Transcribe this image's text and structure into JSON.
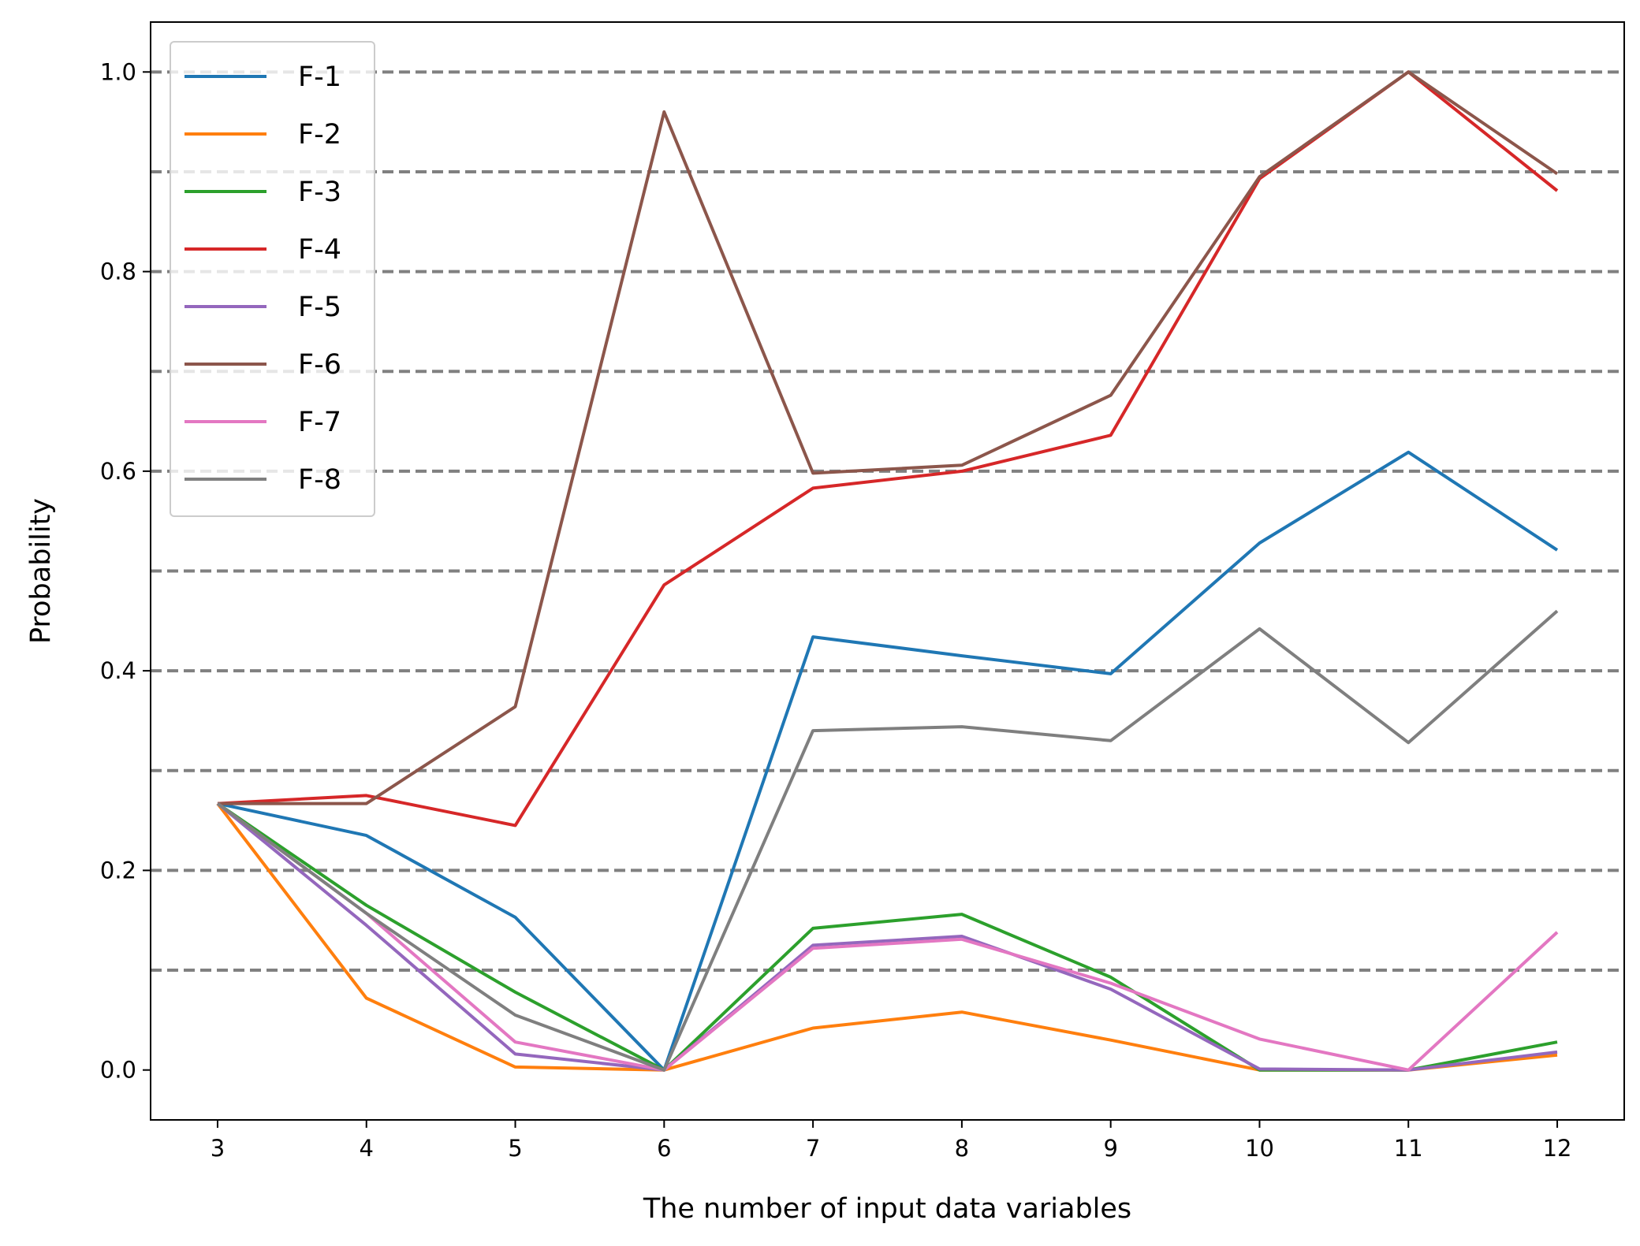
{
  "chart_data": {
    "type": "line",
    "xlabel": "The number of input data variables",
    "ylabel": "Probability",
    "x": [
      3,
      4,
      5,
      6,
      7,
      8,
      9,
      10,
      11,
      12
    ],
    "xlim": [
      2.55,
      12.45
    ],
    "ylim": [
      -0.05,
      1.05
    ],
    "x_ticks": [
      3,
      4,
      5,
      6,
      7,
      8,
      9,
      10,
      11,
      12
    ],
    "y_ticks": [
      0.0,
      0.2,
      0.4,
      0.6,
      0.8,
      1.0
    ],
    "y_tick_labels": [
      "0.0",
      "0.2",
      "0.4",
      "0.6",
      "0.8",
      "1.0"
    ],
    "grid": {
      "axis": "y",
      "style": "dashed",
      "color": "#808080",
      "values": [
        0.1,
        0.2,
        0.3,
        0.4,
        0.5,
        0.6,
        0.7,
        0.8,
        0.9,
        1.0
      ]
    },
    "legend": {
      "placement": "upper-left"
    },
    "series": [
      {
        "name": "F-1",
        "color": "#1f77b4",
        "values": [
          0.267,
          0.235,
          0.153,
          0.0,
          0.434,
          0.415,
          0.397,
          0.528,
          0.619,
          0.521
        ]
      },
      {
        "name": "F-2",
        "color": "#ff7f0e",
        "values": [
          0.267,
          0.072,
          0.003,
          0.0,
          0.042,
          0.058,
          0.03,
          0.0,
          0.0,
          0.015
        ]
      },
      {
        "name": "F-3",
        "color": "#2ca02c",
        "values": [
          0.267,
          0.165,
          0.078,
          0.0,
          0.142,
          0.156,
          0.093,
          0.0,
          0.0,
          0.028
        ]
      },
      {
        "name": "F-4",
        "color": "#d62728",
        "values": [
          0.267,
          0.275,
          0.245,
          0.486,
          0.583,
          0.6,
          0.636,
          0.893,
          1.0,
          0.881
        ]
      },
      {
        "name": "F-5",
        "color": "#9467bd",
        "values": [
          0.267,
          0.145,
          0.016,
          0.0,
          0.125,
          0.134,
          0.081,
          0.001,
          0.0,
          0.018
        ]
      },
      {
        "name": "F-6",
        "color": "#8c564b",
        "values": [
          0.267,
          0.267,
          0.364,
          0.96,
          0.598,
          0.606,
          0.676,
          0.895,
          1.0,
          0.898
        ]
      },
      {
        "name": "F-7",
        "color": "#e377c2",
        "values": [
          0.267,
          0.157,
          0.028,
          0.0,
          0.122,
          0.131,
          0.087,
          0.031,
          0.0,
          0.138
        ]
      },
      {
        "name": "F-8",
        "color": "#7f7f7f",
        "values": [
          0.267,
          0.157,
          0.055,
          0.0,
          0.34,
          0.344,
          0.33,
          0.442,
          0.328,
          0.46
        ]
      }
    ]
  }
}
